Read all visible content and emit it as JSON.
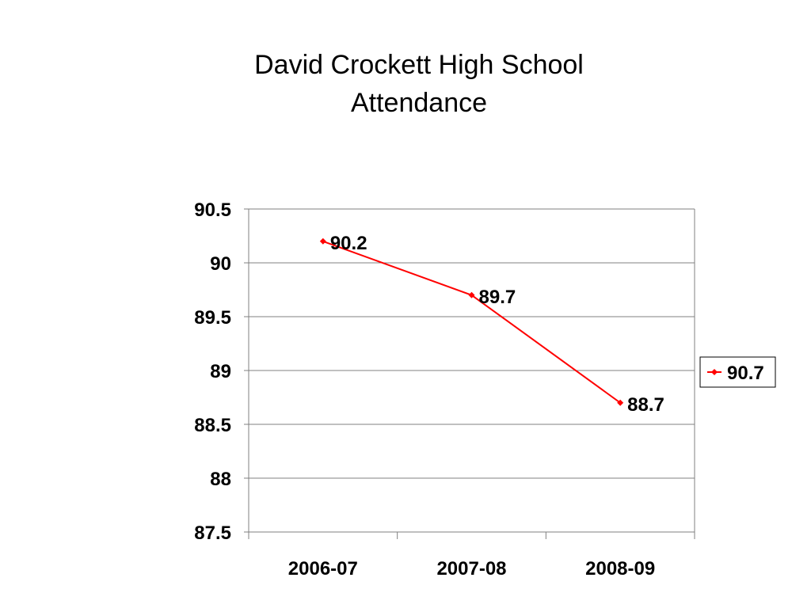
{
  "chart_data": {
    "type": "line",
    "title_lines": [
      "David Crockett High School",
      "Attendance"
    ],
    "categories": [
      "2006-07",
      "2007-08",
      "2008-09"
    ],
    "series": [
      {
        "name": "90.7",
        "values": [
          90.2,
          89.7,
          88.7
        ],
        "color": "#FF0000"
      }
    ],
    "data_labels": [
      "90.2",
      "89.7",
      "88.7"
    ],
    "y_ticks": [
      "87.5",
      "88",
      "88.5",
      "89",
      "89.5",
      "90",
      "90.5"
    ],
    "ylim": [
      87.5,
      90.5
    ],
    "y_step": 0.5,
    "grid": true,
    "legend_position": "right",
    "xlabel": "",
    "ylabel": ""
  }
}
